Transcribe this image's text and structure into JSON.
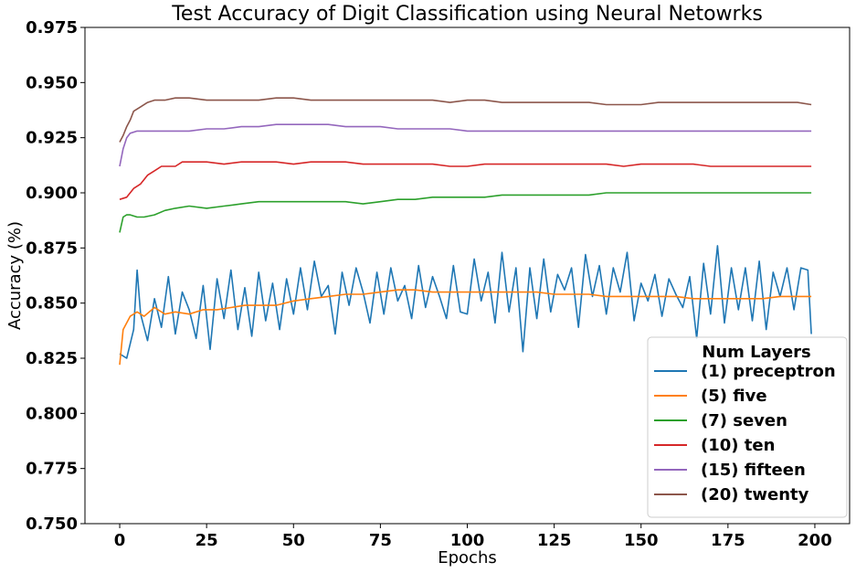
{
  "chart_data": {
    "type": "line",
    "title": "Test Accuracy of Digit Classification using Neural Netowrks",
    "xlabel": "Epochs",
    "ylabel": "Accuracy (%)",
    "xlim": [
      -10,
      210
    ],
    "ylim": [
      0.75,
      0.975
    ],
    "xticks": [
      0,
      25,
      50,
      75,
      100,
      125,
      150,
      175,
      200
    ],
    "xtick_labels": [
      "0",
      "25",
      "50",
      "75",
      "100",
      "125",
      "150",
      "175",
      "200"
    ],
    "yticks": [
      0.75,
      0.775,
      0.8,
      0.825,
      0.85,
      0.875,
      0.9,
      0.925,
      0.95,
      0.975
    ],
    "ytick_labels": [
      "0.750",
      "0.775",
      "0.800",
      "0.825",
      "0.850",
      "0.875",
      "0.900",
      "0.925",
      "0.950",
      "0.975"
    ],
    "grid": false,
    "legend": {
      "title": "Num Layers",
      "placement": "lower-right"
    },
    "series": [
      {
        "name": "(1) preceptron",
        "color": "#1f77b4",
        "x": [
          0,
          2,
          4,
          5,
          6,
          8,
          10,
          12,
          14,
          16,
          18,
          20,
          22,
          24,
          26,
          28,
          30,
          32,
          34,
          36,
          38,
          40,
          42,
          44,
          46,
          48,
          50,
          52,
          54,
          56,
          58,
          60,
          62,
          64,
          66,
          68,
          70,
          72,
          74,
          76,
          78,
          80,
          82,
          84,
          86,
          88,
          90,
          92,
          94,
          96,
          98,
          100,
          102,
          104,
          106,
          108,
          110,
          112,
          114,
          116,
          118,
          120,
          122,
          124,
          126,
          128,
          130,
          132,
          134,
          136,
          138,
          140,
          142,
          144,
          146,
          148,
          150,
          152,
          154,
          156,
          158,
          160,
          162,
          164,
          166,
          168,
          170,
          172,
          174,
          176,
          178,
          180,
          182,
          184,
          186,
          188,
          190,
          192,
          194,
          196,
          198,
          199
        ],
        "y": [
          0.827,
          0.825,
          0.838,
          0.865,
          0.845,
          0.833,
          0.852,
          0.839,
          0.862,
          0.836,
          0.855,
          0.847,
          0.834,
          0.858,
          0.829,
          0.861,
          0.843,
          0.865,
          0.838,
          0.857,
          0.835,
          0.864,
          0.842,
          0.859,
          0.838,
          0.861,
          0.845,
          0.866,
          0.847,
          0.869,
          0.853,
          0.858,
          0.836,
          0.864,
          0.849,
          0.866,
          0.855,
          0.841,
          0.864,
          0.845,
          0.866,
          0.851,
          0.858,
          0.843,
          0.867,
          0.848,
          0.862,
          0.853,
          0.843,
          0.867,
          0.846,
          0.845,
          0.87,
          0.851,
          0.864,
          0.841,
          0.873,
          0.846,
          0.866,
          0.828,
          0.866,
          0.843,
          0.87,
          0.846,
          0.863,
          0.856,
          0.866,
          0.839,
          0.872,
          0.853,
          0.867,
          0.845,
          0.866,
          0.855,
          0.873,
          0.842,
          0.859,
          0.851,
          0.863,
          0.844,
          0.861,
          0.854,
          0.848,
          0.862,
          0.834,
          0.868,
          0.845,
          0.876,
          0.841,
          0.866,
          0.847,
          0.866,
          0.842,
          0.869,
          0.838,
          0.864,
          0.853,
          0.866,
          0.847,
          0.866,
          0.865,
          0.836
        ]
      },
      {
        "name": "(5) five",
        "color": "#ff7f0e",
        "x": [
          0,
          1,
          3,
          5,
          7,
          10,
          13,
          16,
          20,
          24,
          28,
          32,
          36,
          40,
          45,
          50,
          55,
          60,
          65,
          70,
          75,
          80,
          85,
          90,
          95,
          100,
          105,
          110,
          115,
          120,
          125,
          130,
          135,
          140,
          145,
          150,
          155,
          160,
          165,
          170,
          175,
          180,
          185,
          190,
          195,
          199
        ],
        "y": [
          0.822,
          0.838,
          0.844,
          0.846,
          0.844,
          0.848,
          0.845,
          0.846,
          0.845,
          0.847,
          0.847,
          0.848,
          0.849,
          0.849,
          0.849,
          0.851,
          0.852,
          0.853,
          0.854,
          0.854,
          0.855,
          0.856,
          0.856,
          0.855,
          0.855,
          0.855,
          0.855,
          0.855,
          0.855,
          0.855,
          0.854,
          0.854,
          0.854,
          0.853,
          0.853,
          0.853,
          0.853,
          0.853,
          0.852,
          0.852,
          0.852,
          0.852,
          0.852,
          0.853,
          0.853,
          0.853
        ]
      },
      {
        "name": "(7) seven",
        "color": "#2ca02c",
        "x": [
          0,
          1,
          2,
          3,
          5,
          7,
          10,
          13,
          16,
          20,
          25,
          30,
          35,
          40,
          45,
          50,
          55,
          60,
          65,
          70,
          75,
          80,
          85,
          90,
          95,
          100,
          105,
          110,
          115,
          120,
          125,
          130,
          135,
          140,
          145,
          150,
          155,
          160,
          165,
          170,
          175,
          180,
          185,
          190,
          195,
          199
        ],
        "y": [
          0.882,
          0.889,
          0.89,
          0.89,
          0.889,
          0.889,
          0.89,
          0.892,
          0.893,
          0.894,
          0.893,
          0.894,
          0.895,
          0.896,
          0.896,
          0.896,
          0.896,
          0.896,
          0.896,
          0.895,
          0.896,
          0.897,
          0.897,
          0.898,
          0.898,
          0.898,
          0.898,
          0.899,
          0.899,
          0.899,
          0.899,
          0.899,
          0.899,
          0.9,
          0.9,
          0.9,
          0.9,
          0.9,
          0.9,
          0.9,
          0.9,
          0.9,
          0.9,
          0.9,
          0.9,
          0.9
        ]
      },
      {
        "name": "(10) ten",
        "color": "#d62728",
        "x": [
          0,
          2,
          4,
          6,
          8,
          10,
          12,
          14,
          16,
          18,
          20,
          25,
          30,
          35,
          40,
          45,
          50,
          55,
          60,
          65,
          70,
          75,
          80,
          85,
          90,
          95,
          100,
          105,
          110,
          115,
          120,
          125,
          130,
          135,
          140,
          145,
          150,
          155,
          160,
          165,
          170,
          175,
          180,
          185,
          190,
          195,
          199
        ],
        "y": [
          0.897,
          0.898,
          0.902,
          0.904,
          0.908,
          0.91,
          0.912,
          0.912,
          0.912,
          0.914,
          0.914,
          0.914,
          0.913,
          0.914,
          0.914,
          0.914,
          0.913,
          0.914,
          0.914,
          0.914,
          0.913,
          0.913,
          0.913,
          0.913,
          0.913,
          0.912,
          0.912,
          0.913,
          0.913,
          0.913,
          0.913,
          0.913,
          0.913,
          0.913,
          0.913,
          0.912,
          0.913,
          0.913,
          0.913,
          0.913,
          0.912,
          0.912,
          0.912,
          0.912,
          0.912,
          0.912,
          0.912
        ]
      },
      {
        "name": "(15) fifteen",
        "color": "#9467bd",
        "x": [
          0,
          1,
          2,
          3,
          5,
          7,
          10,
          15,
          20,
          25,
          30,
          35,
          40,
          45,
          50,
          55,
          60,
          65,
          70,
          75,
          80,
          85,
          90,
          95,
          100,
          105,
          110,
          115,
          120,
          125,
          130,
          135,
          140,
          145,
          150,
          155,
          160,
          165,
          170,
          175,
          180,
          185,
          190,
          195,
          199
        ],
        "y": [
          0.912,
          0.92,
          0.925,
          0.927,
          0.928,
          0.928,
          0.928,
          0.928,
          0.928,
          0.929,
          0.929,
          0.93,
          0.93,
          0.931,
          0.931,
          0.931,
          0.931,
          0.93,
          0.93,
          0.93,
          0.929,
          0.929,
          0.929,
          0.929,
          0.928,
          0.928,
          0.928,
          0.928,
          0.928,
          0.928,
          0.928,
          0.928,
          0.928,
          0.928,
          0.928,
          0.928,
          0.928,
          0.928,
          0.928,
          0.928,
          0.928,
          0.928,
          0.928,
          0.928,
          0.928
        ]
      },
      {
        "name": "(20) twenty",
        "color": "#8c564b",
        "x": [
          0,
          1,
          2,
          3,
          4,
          6,
          8,
          10,
          13,
          16,
          20,
          25,
          30,
          35,
          40,
          45,
          50,
          55,
          60,
          65,
          70,
          75,
          80,
          85,
          90,
          95,
          100,
          105,
          110,
          115,
          120,
          125,
          130,
          135,
          140,
          145,
          150,
          155,
          160,
          165,
          170,
          175,
          180,
          185,
          190,
          195,
          199
        ],
        "y": [
          0.923,
          0.926,
          0.93,
          0.933,
          0.937,
          0.939,
          0.941,
          0.942,
          0.942,
          0.943,
          0.943,
          0.942,
          0.942,
          0.942,
          0.942,
          0.943,
          0.943,
          0.942,
          0.942,
          0.942,
          0.942,
          0.942,
          0.942,
          0.942,
          0.942,
          0.941,
          0.942,
          0.942,
          0.941,
          0.941,
          0.941,
          0.941,
          0.941,
          0.941,
          0.94,
          0.94,
          0.94,
          0.941,
          0.941,
          0.941,
          0.941,
          0.941,
          0.941,
          0.941,
          0.941,
          0.941,
          0.94
        ]
      }
    ]
  }
}
